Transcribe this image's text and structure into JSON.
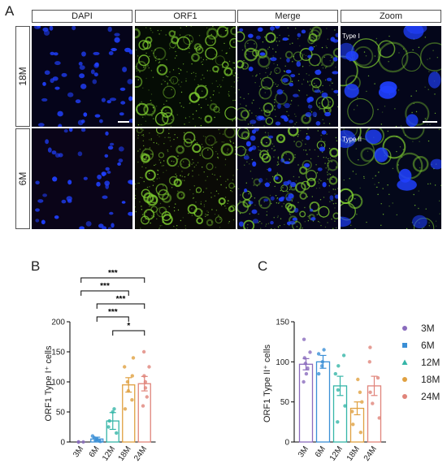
{
  "panel_labels": {
    "a": "A",
    "b": "B",
    "c": "C"
  },
  "columns": [
    "DAPI",
    "ORF1",
    "Merge",
    "Zoom"
  ],
  "rows": [
    "18M",
    "6M"
  ],
  "zoom_labels": [
    "Type I",
    "Type II"
  ],
  "colors": {
    "3M": "#8a6bbd",
    "6M": "#3a8fd6",
    "12M": "#35b5a8",
    "18M": "#e0a040",
    "24M": "#e0847a",
    "dapi": "#2040ff",
    "orf1": "#80d030"
  },
  "chart_data": [
    {
      "type": "bar",
      "panel": "B",
      "categories": [
        "3M",
        "6M",
        "12M",
        "18M",
        "24M"
      ],
      "values": [
        0,
        5,
        35,
        95,
        97
      ],
      "errors": [
        0,
        3,
        14,
        12,
        12
      ],
      "ylabel": "ORF1 Type I⁺ cells",
      "ylim": [
        0,
        200
      ],
      "yticks": [
        0,
        50,
        100,
        150,
        200
      ],
      "points": [
        [
          0,
          0,
          0
        ],
        [
          1,
          2,
          3,
          5,
          7,
          10
        ],
        [
          15,
          25,
          35,
          50,
          55
        ],
        [
          55,
          70,
          85,
          100,
          110,
          125,
          140
        ],
        [
          60,
          75,
          90,
          100,
          110,
          125,
          150
        ]
      ],
      "significance": [
        {
          "from": "3M",
          "to": "24M",
          "label": "***"
        },
        {
          "from": "3M",
          "to": "18M",
          "label": "***"
        },
        {
          "from": "6M",
          "to": "24M",
          "label": "***"
        },
        {
          "from": "6M",
          "to": "18M",
          "label": "***"
        },
        {
          "from": "12M",
          "to": "24M",
          "label": "*"
        }
      ]
    },
    {
      "type": "bar",
      "panel": "C",
      "categories": [
        "3M",
        "6M",
        "12M",
        "18M",
        "24M"
      ],
      "values": [
        97,
        100,
        70,
        42,
        70
      ],
      "errors": [
        7,
        8,
        12,
        8,
        12
      ],
      "ylabel": "ORF1 Type II⁺ cells",
      "ylim": [
        0,
        150
      ],
      "yticks": [
        0,
        50,
        100,
        150
      ],
      "points": [
        [
          75,
          85,
          92,
          98,
          105,
          112,
          128
        ],
        [
          85,
          95,
          100,
          110,
          115
        ],
        [
          25,
          45,
          65,
          85,
          95,
          108
        ],
        [
          12,
          22,
          38,
          50,
          62,
          78
        ],
        [
          30,
          48,
          62,
          80,
          100,
          118
        ]
      ],
      "legend": [
        "3M",
        "6M",
        "12M",
        "18M",
        "24M"
      ],
      "legend_position": "right"
    }
  ]
}
